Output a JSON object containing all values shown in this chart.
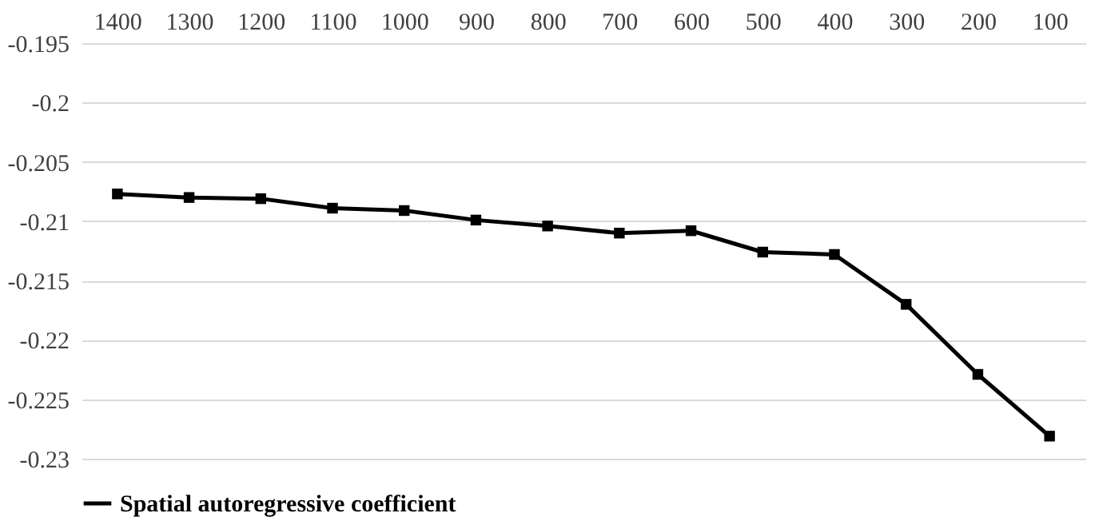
{
  "chart_data": {
    "type": "line",
    "categories": [
      "1400",
      "1300",
      "1200",
      "1100",
      "1000",
      "900",
      "800",
      "700",
      "600",
      "500",
      "400",
      "300",
      "200",
      "100"
    ],
    "series": [
      {
        "name": "Spatial autoregressive coefficient",
        "color": "#000000",
        "values": [
          -0.2077,
          -0.208,
          -0.2081,
          -0.2089,
          -0.2091,
          -0.2099,
          -0.2104,
          -0.211,
          -0.2108,
          -0.2126,
          -0.2128,
          -0.217,
          -0.2229,
          -0.2281
        ]
      }
    ],
    "ylim": [
      -0.23,
      -0.195
    ],
    "yticks": [
      -0.195,
      -0.2,
      -0.205,
      -0.21,
      -0.215,
      -0.22,
      -0.225,
      -0.23
    ],
    "grid": "y",
    "legend": "bottom",
    "marker": "square",
    "line_style": "solid"
  }
}
